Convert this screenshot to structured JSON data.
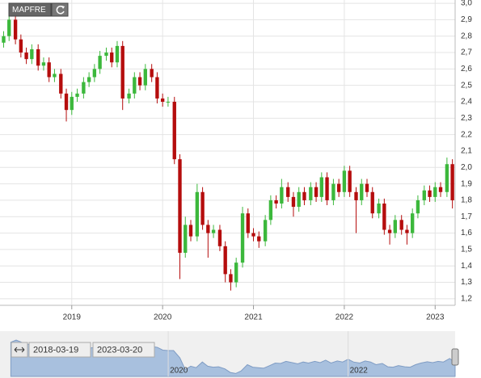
{
  "chart_data": {
    "type": "candlestick",
    "title": "MAPFRE",
    "x": [
      2018.25,
      2018.31,
      2018.38,
      2018.44,
      2018.5,
      2018.56,
      2018.63,
      2018.69,
      2018.75,
      2018.81,
      2018.88,
      2018.94,
      2019.0,
      2019.06,
      2019.13,
      2019.19,
      2019.25,
      2019.31,
      2019.38,
      2019.44,
      2019.5,
      2019.56,
      2019.63,
      2019.69,
      2019.75,
      2019.81,
      2019.88,
      2019.94,
      2020.0,
      2020.06,
      2020.13,
      2020.19,
      2020.25,
      2020.31,
      2020.38,
      2020.44,
      2020.5,
      2020.56,
      2020.63,
      2020.69,
      2020.75,
      2020.81,
      2020.88,
      2020.94,
      2021.0,
      2021.06,
      2021.13,
      2021.19,
      2021.25,
      2021.31,
      2021.38,
      2021.44,
      2021.5,
      2021.56,
      2021.63,
      2021.69,
      2021.75,
      2021.81,
      2021.88,
      2021.94,
      2022.0,
      2022.06,
      2022.13,
      2022.19,
      2022.25,
      2022.31,
      2022.38,
      2022.44,
      2022.5,
      2022.56,
      2022.63,
      2022.69,
      2022.75,
      2022.81,
      2022.88,
      2022.94,
      2023.0,
      2023.06,
      2023.13,
      2023.19
    ],
    "open": [
      2.76,
      2.8,
      2.9,
      2.78,
      2.7,
      2.66,
      2.72,
      2.62,
      2.64,
      2.55,
      2.57,
      2.45,
      2.35,
      2.43,
      2.45,
      2.52,
      2.55,
      2.6,
      2.68,
      2.7,
      2.64,
      2.74,
      2.42,
      2.45,
      2.55,
      2.5,
      2.6,
      2.55,
      2.42,
      2.4,
      2.4,
      2.05,
      1.48,
      1.65,
      1.58,
      1.85,
      1.65,
      1.6,
      1.62,
      1.52,
      1.35,
      1.3,
      1.42,
      1.72,
      1.6,
      1.58,
      1.55,
      1.68,
      1.8,
      1.78,
      1.88,
      1.82,
      1.76,
      1.85,
      1.8,
      1.88,
      1.82,
      1.94,
      1.8,
      1.9,
      1.85,
      1.98,
      1.85,
      1.8,
      1.9,
      1.85,
      1.72,
      1.78,
      1.62,
      1.6,
      1.68,
      1.62,
      1.6,
      1.72,
      1.8,
      1.86,
      1.82,
      1.88,
      1.85,
      2.02
    ],
    "high": [
      2.83,
      2.95,
      2.93,
      2.81,
      2.73,
      2.75,
      2.75,
      2.67,
      2.67,
      2.6,
      2.6,
      2.48,
      2.46,
      2.48,
      2.55,
      2.58,
      2.63,
      2.71,
      2.73,
      2.73,
      2.77,
      2.77,
      2.48,
      2.58,
      2.58,
      2.63,
      2.63,
      2.58,
      2.45,
      2.43,
      2.43,
      2.08,
      1.7,
      1.68,
      1.9,
      1.88,
      1.68,
      1.65,
      1.65,
      1.55,
      1.38,
      1.45,
      1.76,
      1.75,
      1.63,
      1.61,
      1.71,
      1.83,
      1.83,
      1.93,
      1.91,
      1.85,
      1.88,
      1.88,
      1.91,
      1.91,
      1.97,
      1.97,
      1.93,
      1.93,
      2.01,
      2.01,
      1.88,
      1.93,
      1.93,
      1.88,
      1.81,
      1.81,
      1.65,
      1.71,
      1.71,
      1.65,
      1.75,
      1.83,
      1.89,
      1.89,
      1.91,
      1.91,
      2.06,
      2.05
    ],
    "low": [
      2.73,
      2.77,
      2.75,
      2.67,
      2.63,
      2.63,
      2.59,
      2.59,
      2.52,
      2.52,
      2.42,
      2.28,
      2.32,
      2.4,
      2.42,
      2.49,
      2.52,
      2.57,
      2.65,
      2.61,
      2.61,
      2.35,
      2.39,
      2.42,
      2.47,
      2.47,
      2.52,
      2.39,
      2.37,
      2.37,
      2.02,
      1.32,
      1.45,
      1.55,
      1.55,
      1.62,
      1.45,
      1.57,
      1.49,
      1.3,
      1.25,
      1.27,
      1.39,
      1.57,
      1.55,
      1.51,
      1.52,
      1.65,
      1.75,
      1.75,
      1.79,
      1.7,
      1.73,
      1.77,
      1.77,
      1.79,
      1.79,
      1.77,
      1.77,
      1.82,
      1.82,
      1.82,
      1.6,
      1.77,
      1.82,
      1.69,
      1.69,
      1.59,
      1.53,
      1.57,
      1.59,
      1.53,
      1.57,
      1.69,
      1.77,
      1.79,
      1.79,
      1.82,
      1.82,
      1.75
    ],
    "close": [
      2.8,
      2.9,
      2.78,
      2.7,
      2.66,
      2.72,
      2.62,
      2.64,
      2.55,
      2.57,
      2.45,
      2.35,
      2.43,
      2.45,
      2.52,
      2.55,
      2.6,
      2.68,
      2.7,
      2.64,
      2.74,
      2.42,
      2.45,
      2.55,
      2.5,
      2.6,
      2.55,
      2.42,
      2.4,
      2.4,
      2.05,
      1.48,
      1.65,
      1.58,
      1.85,
      1.65,
      1.6,
      1.62,
      1.52,
      1.35,
      1.3,
      1.42,
      1.72,
      1.6,
      1.58,
      1.55,
      1.68,
      1.8,
      1.78,
      1.88,
      1.82,
      1.76,
      1.85,
      1.8,
      1.88,
      1.82,
      1.94,
      1.8,
      1.9,
      1.85,
      1.98,
      1.85,
      1.8,
      1.9,
      1.85,
      1.72,
      1.78,
      1.62,
      1.6,
      1.68,
      1.62,
      1.6,
      1.72,
      1.8,
      1.86,
      1.82,
      1.88,
      1.85,
      2.02,
      1.8
    ],
    "up_color": "#3cb83c",
    "down_color": "#b50d0d",
    "xlim": [
      2018.21,
      2023.22
    ],
    "xticks": [
      2019,
      2020,
      2021,
      2022,
      2023
    ],
    "ylim": [
      1.16,
      3.02
    ],
    "yticks": [
      {
        "value": 1.2,
        "label": "1,2"
      },
      {
        "value": 1.3,
        "label": "1,3"
      },
      {
        "value": 1.4,
        "label": "1,4"
      },
      {
        "value": 1.5,
        "label": "1,5"
      },
      {
        "value": 1.6,
        "label": "1,6"
      },
      {
        "value": 1.7,
        "label": "1,7"
      },
      {
        "value": 1.8,
        "label": "1,8"
      },
      {
        "value": 1.9,
        "label": "1,9"
      },
      {
        "value": 2.0,
        "label": "2,0"
      },
      {
        "value": 2.1,
        "label": "2,1"
      },
      {
        "value": 2.2,
        "label": "2,2"
      },
      {
        "value": 2.3,
        "label": "2,3"
      },
      {
        "value": 2.4,
        "label": "2,4"
      },
      {
        "value": 2.5,
        "label": "2,5"
      },
      {
        "value": 2.6,
        "label": "2,6"
      },
      {
        "value": 2.7,
        "label": "2,7"
      },
      {
        "value": 2.8,
        "label": "2,8"
      },
      {
        "value": 2.9,
        "label": "2,9"
      },
      {
        "value": 3.0,
        "label": "3,0"
      }
    ],
    "grid": true,
    "navigator": {
      "range_start": "2018-03-19",
      "range_end": "2023-03-20",
      "xlim": [
        2018.13,
        2023.19
      ],
      "xticks": [
        2020,
        2022
      ],
      "color": "#a8c0de"
    }
  }
}
